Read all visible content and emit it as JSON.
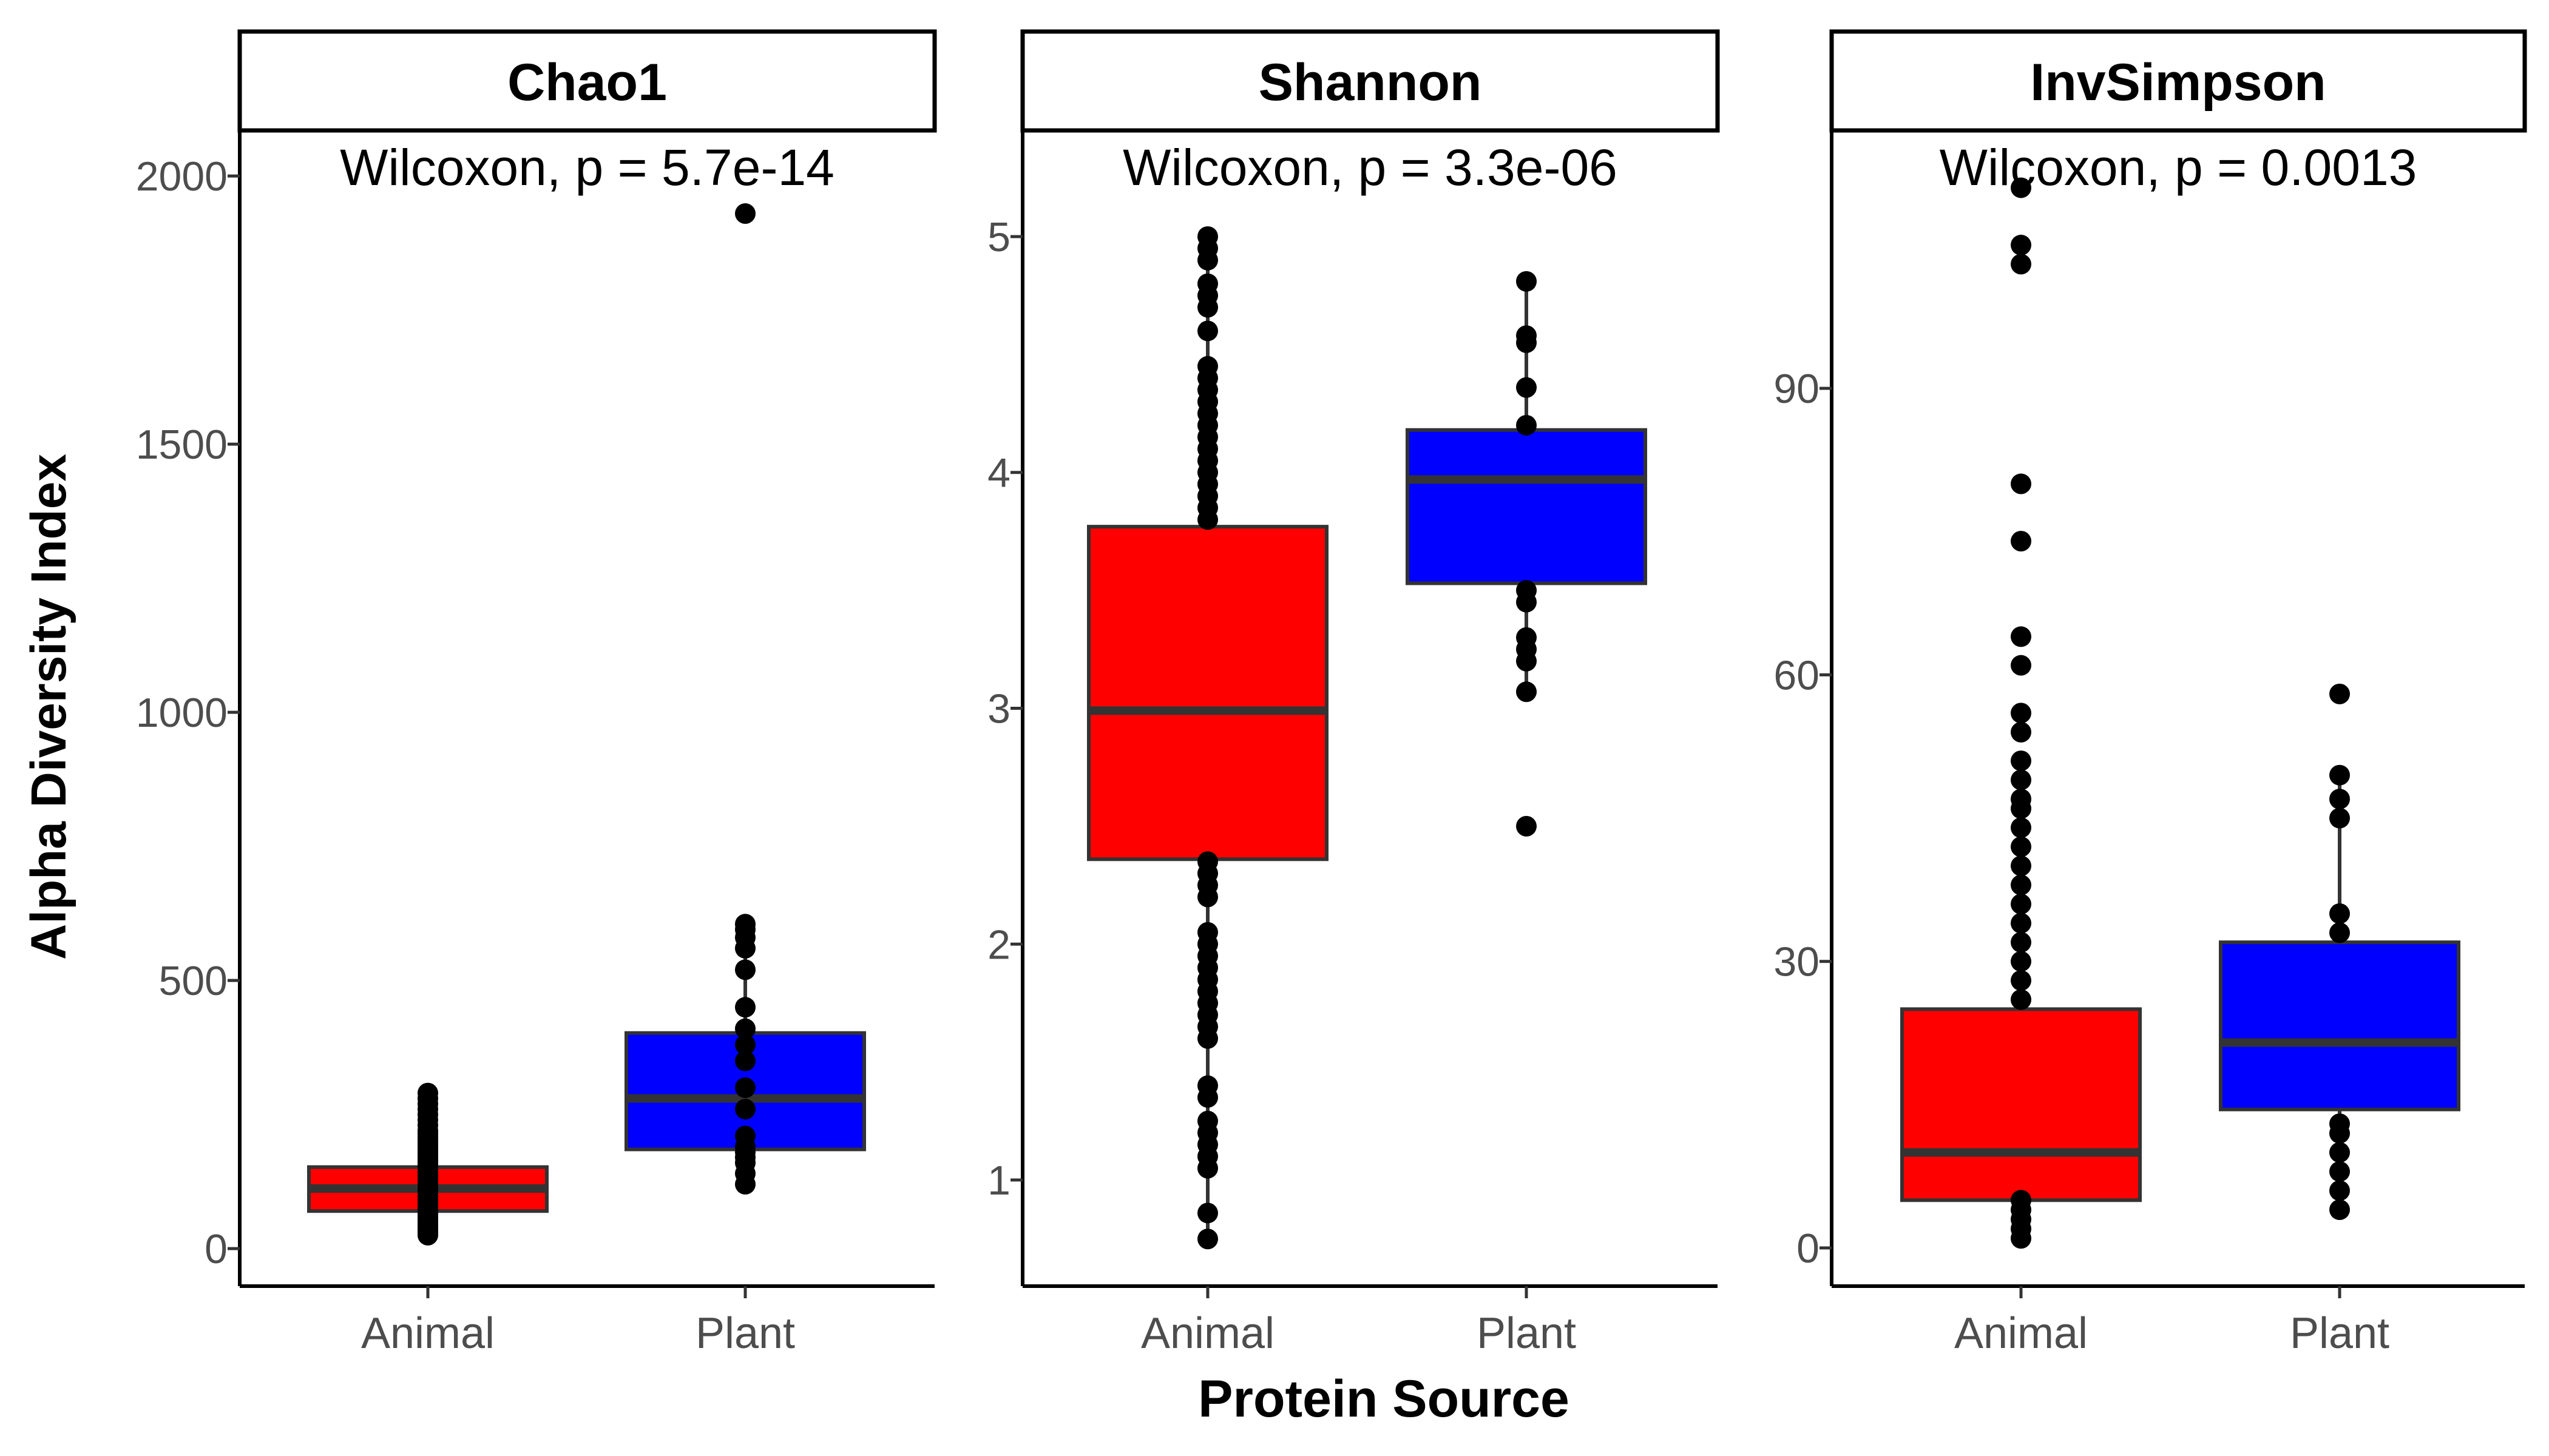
{
  "chart_data": {
    "type": "boxplot",
    "ylabel": "Alpha Diversity Index",
    "xlabel": "Protein Source",
    "categories": [
      "Animal",
      "Plant"
    ],
    "colors": {
      "Animal": "#ff0000",
      "Plant": "#0000ff"
    },
    "panels": [
      {
        "title": "Chao1",
        "annotation": "Wilcoxon, p = 5.7e-14",
        "ylim": [
          -70,
          2085
        ],
        "yticks": [
          0,
          500,
          1000,
          1500,
          2000
        ],
        "ytick_labels": [
          "0",
          "500",
          "1000",
          "1500",
          "2000"
        ],
        "boxes": [
          {
            "category": "Animal",
            "q1": 70,
            "median": 112,
            "q3": 152,
            "whisker_low": 25,
            "whisker_high": 290,
            "points": [
              25,
              30,
              35,
              40,
              45,
              50,
              55,
              60,
              65,
              70,
              75,
              80,
              85,
              90,
              95,
              100,
              105,
              110,
              115,
              120,
              125,
              130,
              135,
              140,
              145,
              150,
              155,
              160,
              165,
              170,
              175,
              180,
              185,
              190,
              195,
              200,
              205,
              210,
              215,
              220,
              230,
              240,
              250,
              260,
              270,
              280,
              290
            ]
          },
          {
            "category": "Plant",
            "q1": 185,
            "median": 280,
            "q3": 402,
            "whisker_low": 120,
            "whisker_high": 605,
            "points": [
              120,
              140,
              160,
              170,
              180,
              190,
              210,
              260,
              300,
              350,
              380,
              410,
              450,
              520,
              560,
              580,
              595,
              605,
              1930
            ]
          }
        ]
      },
      {
        "title": "Shannon",
        "annotation": "Wilcoxon, p = 3.3e-06",
        "ylim": [
          0.55,
          5.45
        ],
        "yticks": [
          1,
          2,
          3,
          4,
          5
        ],
        "ytick_labels": [
          "1",
          "2",
          "3",
          "4",
          "5"
        ],
        "boxes": [
          {
            "category": "Animal",
            "q1": 2.36,
            "median": 2.99,
            "q3": 3.77,
            "whisker_low": 0.75,
            "whisker_high": 5.0,
            "points": [
              0.75,
              0.86,
              1.05,
              1.1,
              1.15,
              1.2,
              1.25,
              1.35,
              1.4,
              1.6,
              1.65,
              1.7,
              1.75,
              1.8,
              1.85,
              1.9,
              1.95,
              2.0,
              2.05,
              2.2,
              2.25,
              2.3,
              2.35,
              3.8,
              3.85,
              3.9,
              3.95,
              4.0,
              4.05,
              4.1,
              4.15,
              4.2,
              4.25,
              4.3,
              4.35,
              4.4,
              4.45,
              4.6,
              4.7,
              4.75,
              4.8,
              4.9,
              4.95,
              5.0
            ]
          },
          {
            "category": "Plant",
            "q1": 3.53,
            "median": 3.97,
            "q3": 4.18,
            "whisker_low": 3.07,
            "whisker_high": 4.81,
            "points": [
              2.5,
              3.07,
              3.2,
              3.25,
              3.3,
              3.45,
              3.5,
              4.2,
              4.36,
              4.55,
              4.58,
              4.81
            ]
          }
        ]
      },
      {
        "title": "InvSimpson",
        "annotation": "Wilcoxon, p = 0.0013",
        "ylim": [
          -4,
          117
        ],
        "yticks": [
          0,
          30,
          60,
          90
        ],
        "ytick_labels": [
          "0",
          "30",
          "60",
          "90"
        ],
        "boxes": [
          {
            "category": "Animal",
            "q1": 5,
            "median": 10,
            "q3": 25,
            "whisker_low": 1,
            "whisker_high": 47,
            "points": [
              1,
              2,
              3,
              4,
              5,
              26,
              28,
              30,
              32,
              34,
              36,
              38,
              40,
              42,
              44,
              46,
              47,
              49,
              51,
              54,
              56,
              61,
              64,
              74,
              80,
              103,
              105,
              111
            ]
          },
          {
            "category": "Plant",
            "q1": 14.5,
            "median": 21.5,
            "q3": 32,
            "whisker_low": 4,
            "whisker_high": 49.5,
            "points": [
              4,
              6,
              8,
              10,
              12,
              13,
              33,
              35,
              45,
              47,
              49.5,
              58
            ]
          }
        ]
      }
    ]
  }
}
